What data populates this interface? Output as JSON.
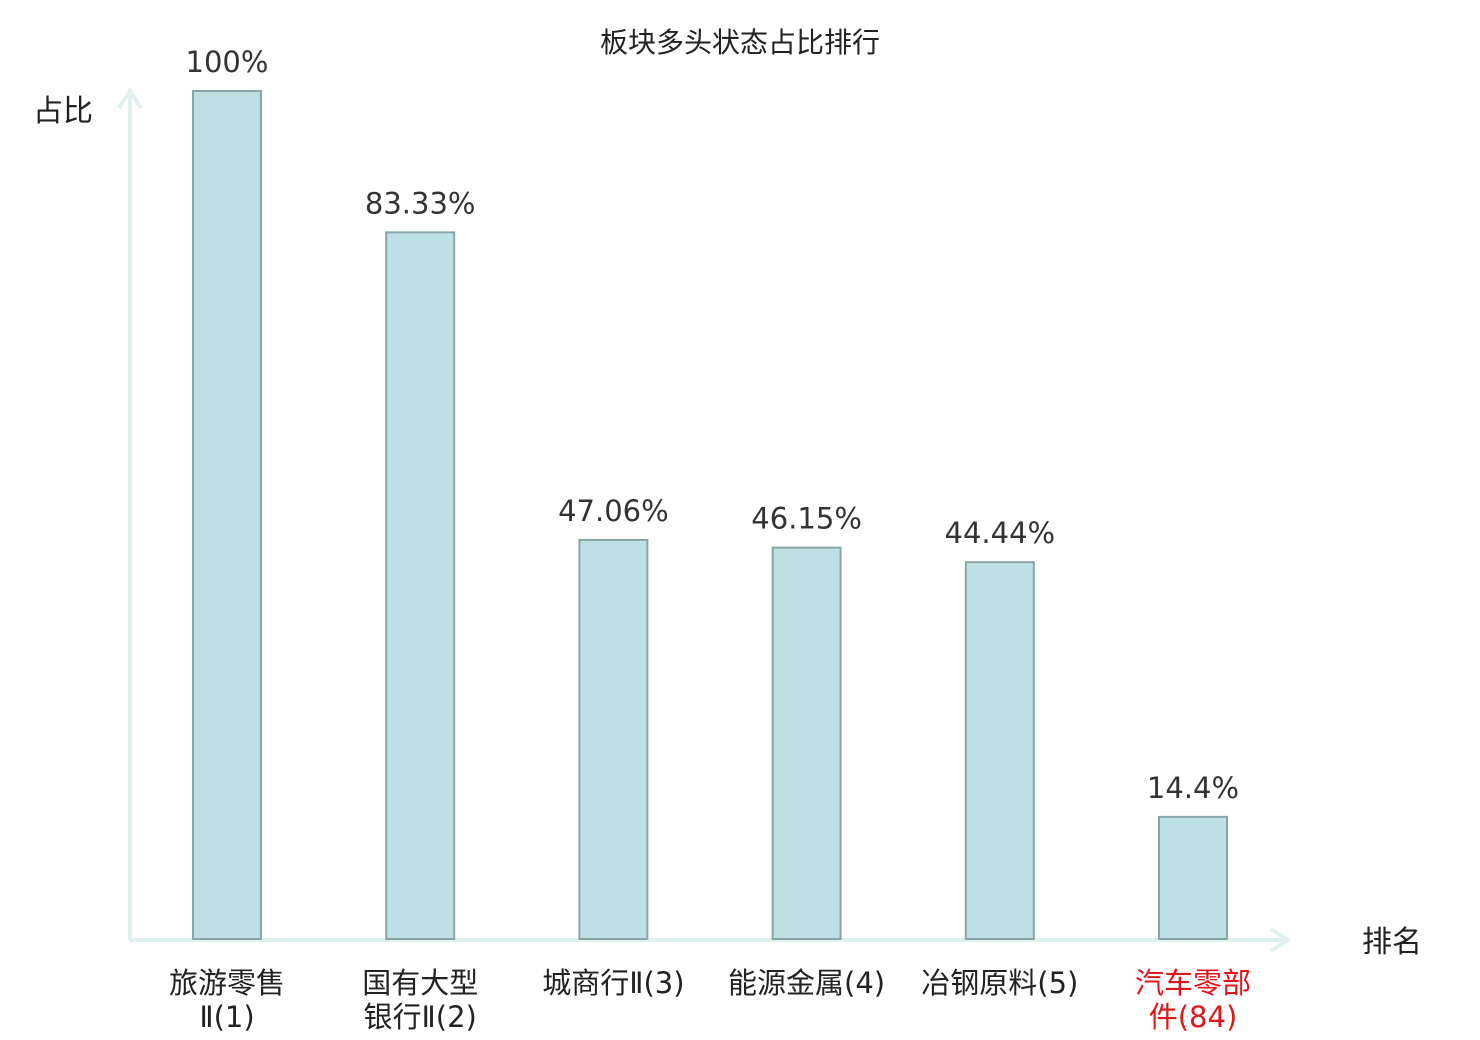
{
  "chart_data": {
    "type": "bar",
    "title": "板块多头状态占比排行",
    "xlabel": "排名",
    "ylabel": "占比",
    "ylim": [
      0,
      100
    ],
    "grid": false,
    "categories": [
      [
        "旅游零售",
        "Ⅱ(1)"
      ],
      [
        "国有大型",
        "银行Ⅱ(2)"
      ],
      [
        "城商行Ⅱ(3)"
      ],
      [
        "能源金属(4)"
      ],
      [
        "冶钢原料(5)"
      ],
      [
        "汽车零部",
        "件(84)"
      ]
    ],
    "values": [
      100,
      83.33,
      47.06,
      46.15,
      44.44,
      14.4
    ],
    "value_labels": [
      "100%",
      "83.33%",
      "47.06%",
      "46.15%",
      "44.44%",
      "14.4%"
    ],
    "highlight_index": 5,
    "colors": {
      "bar_fill": "#bce0e3",
      "bar_stroke": "#8aa5aa",
      "axis": "#dff2ef",
      "text": "#222222",
      "value_text": "#333333",
      "highlight_text": "#e0161b"
    }
  }
}
